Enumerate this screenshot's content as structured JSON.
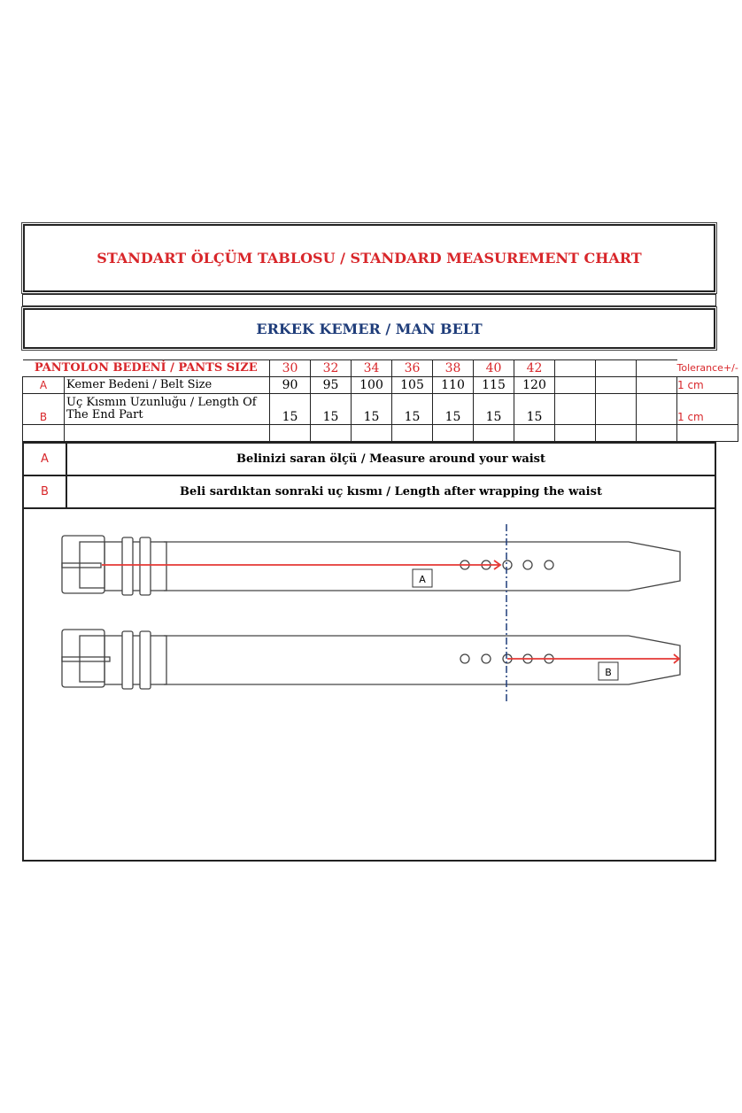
{
  "title": "STANDART ÖLÇÜM TABLOSU / STANDARD MEASUREMENT CHART",
  "subtitle": "ERKEK KEMER / MAN BELT",
  "table": {
    "header_label": "PANTOLON BEDENİ / PANTS SIZE",
    "sizes": [
      "30",
      "32",
      "34",
      "36",
      "38",
      "40",
      "42",
      "",
      "",
      ""
    ],
    "tolerance_label": "Tolerance+/-",
    "rows": [
      {
        "key": "A",
        "label": "Kemer Bedeni / Belt Size",
        "values": [
          "90",
          "95",
          "100",
          "105",
          "110",
          "115",
          "120",
          "",
          "",
          ""
        ],
        "tolerance": "1 cm"
      },
      {
        "key": "B",
        "label": "Uç Kısmın Uzunluğu / Length Of The End Part",
        "values": [
          "15",
          "15",
          "15",
          "15",
          "15",
          "15",
          "15",
          "",
          "",
          ""
        ],
        "tolerance": "1 cm"
      }
    ]
  },
  "legend": [
    {
      "key": "A",
      "text": "Belinizi saran ölçü / Measure around your waist"
    },
    {
      "key": "B",
      "text": "Beli sardıktan sonraki uç kısmı / Length after wrapping the waist"
    }
  ],
  "diagram": {
    "label_a": "A",
    "label_b": "B",
    "colors": {
      "arrow": "#e53935",
      "guide": "#1f3d7a"
    }
  }
}
